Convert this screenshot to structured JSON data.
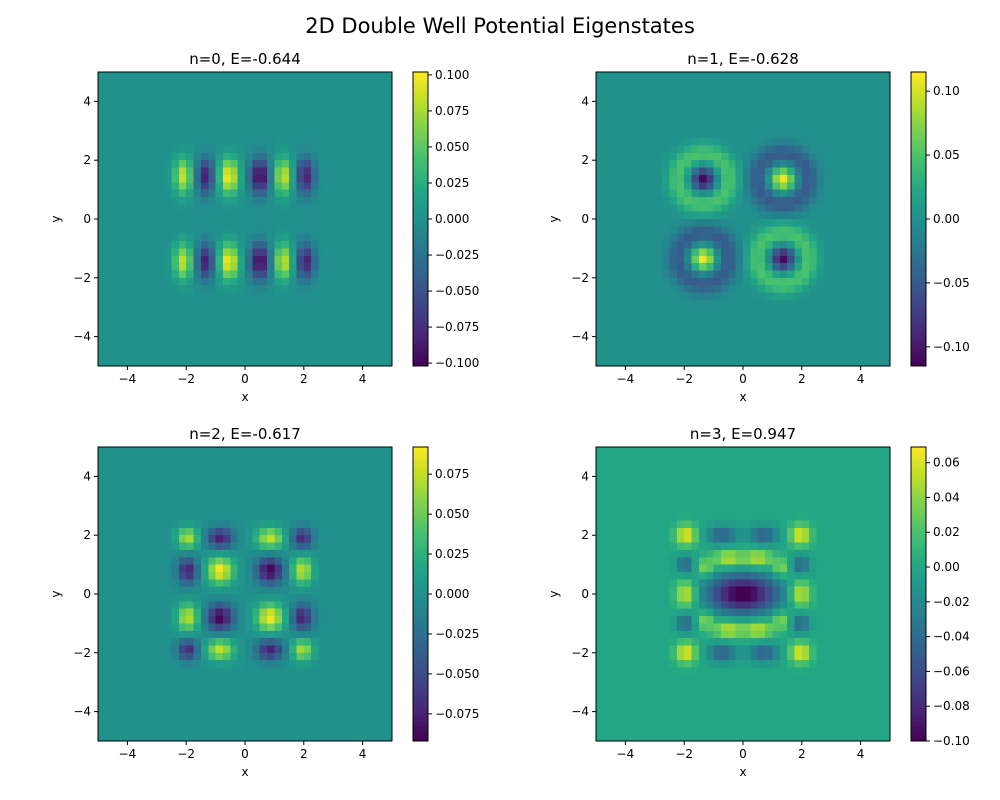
{
  "figure": {
    "title": "2D Double Well Potential Eigenstates"
  },
  "chart_data": [
    {
      "type": "heatmap",
      "title": "n=0, E=-0.644",
      "xlabel": "x",
      "ylabel": "y",
      "xlim": [
        -5,
        5
      ],
      "ylim": [
        -5,
        5
      ],
      "xticks": [
        "−4",
        "−2",
        "0",
        "2",
        "4"
      ],
      "yticks": [
        "−4",
        "−2",
        "0",
        "2",
        "4"
      ],
      "colormap": "viridis",
      "color_range": [
        -0.102,
        0.102
      ],
      "colorbar_ticks": [
        "−0.100",
        "−0.075",
        "−0.050",
        "−0.025",
        "0.000",
        "0.025",
        "0.050",
        "0.075",
        "0.100"
      ],
      "colorbar_tick_values": [
        -0.1,
        -0.075,
        -0.05,
        -0.025,
        0,
        0.025,
        0.05,
        0.075,
        0.1
      ],
      "blobs": [
        {
          "x": -2.1,
          "y": 1.45,
          "amp": 0.085,
          "sx": 0.22,
          "sy": 0.42
        },
        {
          "x": -1.35,
          "y": 1.45,
          "amp": -0.085,
          "sx": 0.22,
          "sy": 0.42
        },
        {
          "x": -0.55,
          "y": 1.45,
          "amp": 0.1,
          "sx": 0.24,
          "sy": 0.42
        },
        {
          "x": 0.5,
          "y": 1.45,
          "amp": -0.1,
          "sx": 0.24,
          "sy": 0.42
        },
        {
          "x": 1.3,
          "y": 1.45,
          "amp": 0.085,
          "sx": 0.22,
          "sy": 0.42
        },
        {
          "x": 2.05,
          "y": 1.45,
          "amp": -0.085,
          "sx": 0.22,
          "sy": 0.42
        },
        {
          "x": -2.1,
          "y": -1.45,
          "amp": 0.085,
          "sx": 0.22,
          "sy": 0.42
        },
        {
          "x": -1.35,
          "y": -1.45,
          "amp": -0.085,
          "sx": 0.22,
          "sy": 0.42
        },
        {
          "x": -0.55,
          "y": -1.45,
          "amp": 0.1,
          "sx": 0.24,
          "sy": 0.42
        },
        {
          "x": 0.5,
          "y": -1.45,
          "amp": -0.1,
          "sx": 0.24,
          "sy": 0.42
        },
        {
          "x": 1.3,
          "y": -1.45,
          "amp": 0.085,
          "sx": 0.22,
          "sy": 0.42
        },
        {
          "x": 2.05,
          "y": -1.45,
          "amp": -0.085,
          "sx": 0.22,
          "sy": 0.42
        }
      ]
    },
    {
      "type": "heatmap",
      "title": "n=1, E=-0.628",
      "xlabel": "x",
      "ylabel": "y",
      "xlim": [
        -5,
        5
      ],
      "ylim": [
        -5,
        5
      ],
      "xticks": [
        "−4",
        "−2",
        "0",
        "2",
        "4"
      ],
      "yticks": [
        "−4",
        "−2",
        "0",
        "2",
        "4"
      ],
      "colormap": "viridis",
      "color_range": [
        -0.115,
        0.115
      ],
      "colorbar_ticks": [
        "−0.10",
        "−0.05",
        "0.00",
        "0.05",
        "0.10"
      ],
      "colorbar_tick_values": [
        -0.1,
        -0.05,
        0,
        0.05,
        0.1
      ],
      "blobs": [
        {
          "x": -1.35,
          "y": 1.35,
          "amp": -0.11,
          "sx": 0.28,
          "sy": 0.28
        },
        {
          "x": -1.35,
          "y": 1.35,
          "ring": 0.05,
          "r": 0.85,
          "w": 0.28
        },
        {
          "x": 1.35,
          "y": 1.35,
          "amp": 0.11,
          "sx": 0.28,
          "sy": 0.28
        },
        {
          "x": 1.35,
          "y": 1.35,
          "ring": -0.05,
          "r": 0.85,
          "w": 0.28
        },
        {
          "x": -1.35,
          "y": -1.35,
          "amp": 0.11,
          "sx": 0.28,
          "sy": 0.28
        },
        {
          "x": -1.35,
          "y": -1.35,
          "ring": -0.05,
          "r": 0.85,
          "w": 0.28
        },
        {
          "x": 1.35,
          "y": -1.35,
          "amp": -0.11,
          "sx": 0.28,
          "sy": 0.28
        },
        {
          "x": 1.35,
          "y": -1.35,
          "ring": 0.05,
          "r": 0.85,
          "w": 0.28
        }
      ]
    },
    {
      "type": "heatmap",
      "title": "n=2, E=-0.617",
      "xlabel": "x",
      "ylabel": "y",
      "xlim": [
        -5,
        5
      ],
      "ylim": [
        -5,
        5
      ],
      "xticks": [
        "−4",
        "−2",
        "0",
        "2",
        "4"
      ],
      "yticks": [
        "−4",
        "−2",
        "0",
        "2",
        "4"
      ],
      "colormap": "viridis",
      "color_range": [
        -0.092,
        0.092
      ],
      "colorbar_ticks": [
        "−0.075",
        "−0.050",
        "−0.025",
        "0.000",
        "0.025",
        "0.050",
        "0.075"
      ],
      "colorbar_tick_values": [
        -0.075,
        -0.05,
        -0.025,
        0,
        0.025,
        0.05,
        0.075
      ],
      "blobs": [
        {
          "x": -1.95,
          "y": 1.9,
          "amp": 0.07,
          "sx": 0.25,
          "sy": 0.25
        },
        {
          "x": -0.85,
          "y": 1.9,
          "amp": -0.075,
          "sx": 0.32,
          "sy": 0.25
        },
        {
          "x": 0.85,
          "y": 1.9,
          "amp": 0.075,
          "sx": 0.32,
          "sy": 0.25
        },
        {
          "x": 1.95,
          "y": 1.9,
          "amp": -0.07,
          "sx": 0.25,
          "sy": 0.25
        },
        {
          "x": -1.95,
          "y": 0.8,
          "amp": -0.075,
          "sx": 0.25,
          "sy": 0.32
        },
        {
          "x": -0.85,
          "y": 0.8,
          "amp": 0.09,
          "sx": 0.32,
          "sy": 0.32
        },
        {
          "x": 0.85,
          "y": 0.8,
          "amp": -0.09,
          "sx": 0.32,
          "sy": 0.32
        },
        {
          "x": 1.95,
          "y": 0.8,
          "amp": 0.075,
          "sx": 0.25,
          "sy": 0.32
        },
        {
          "x": -1.95,
          "y": -0.8,
          "amp": 0.075,
          "sx": 0.25,
          "sy": 0.32
        },
        {
          "x": -0.85,
          "y": -0.8,
          "amp": -0.09,
          "sx": 0.32,
          "sy": 0.32
        },
        {
          "x": 0.85,
          "y": -0.8,
          "amp": 0.09,
          "sx": 0.32,
          "sy": 0.32
        },
        {
          "x": 1.95,
          "y": -0.8,
          "amp": -0.075,
          "sx": 0.25,
          "sy": 0.32
        },
        {
          "x": -1.95,
          "y": -1.9,
          "amp": -0.07,
          "sx": 0.25,
          "sy": 0.25
        },
        {
          "x": -0.85,
          "y": -1.9,
          "amp": 0.075,
          "sx": 0.32,
          "sy": 0.25
        },
        {
          "x": 0.85,
          "y": -1.9,
          "amp": -0.075,
          "sx": 0.32,
          "sy": 0.25
        },
        {
          "x": 1.95,
          "y": -1.9,
          "amp": 0.07,
          "sx": 0.25,
          "sy": 0.25
        }
      ]
    },
    {
      "type": "heatmap",
      "title": "n=3, E=0.947",
      "xlabel": "x",
      "ylabel": "y",
      "xlim": [
        -5,
        5
      ],
      "ylim": [
        -5,
        5
      ],
      "xticks": [
        "−4",
        "−2",
        "0",
        "2",
        "4"
      ],
      "yticks": [
        "−4",
        "−2",
        "0",
        "2",
        "4"
      ],
      "colormap": "viridis",
      "color_range": [
        -0.1,
        0.069
      ],
      "colorbar_ticks": [
        "−0.10",
        "−0.08",
        "−0.06",
        "−0.04",
        "−0.02",
        "0.00",
        "0.02",
        "0.04",
        "0.06"
      ],
      "colorbar_tick_values": [
        -0.1,
        -0.08,
        -0.06,
        -0.04,
        -0.02,
        0,
        0.02,
        0.04,
        0.06
      ],
      "blobs": [
        {
          "x": 0,
          "y": 0,
          "amp": -0.105,
          "sx": 0.85,
          "sy": 0.48
        },
        {
          "x": -0.5,
          "y": 1.2,
          "amp": 0.055,
          "sx": 0.35,
          "sy": 0.22
        },
        {
          "x": 0.5,
          "y": 1.2,
          "amp": 0.055,
          "sx": 0.35,
          "sy": 0.22
        },
        {
          "x": -0.5,
          "y": -1.2,
          "amp": 0.055,
          "sx": 0.35,
          "sy": 0.22
        },
        {
          "x": 0.5,
          "y": -1.2,
          "amp": 0.055,
          "sx": 0.35,
          "sy": 0.22
        },
        {
          "x": -1.3,
          "y": 0.9,
          "amp": 0.04,
          "sx": 0.22,
          "sy": 0.22
        },
        {
          "x": 1.3,
          "y": 0.9,
          "amp": 0.04,
          "sx": 0.22,
          "sy": 0.22
        },
        {
          "x": -1.3,
          "y": -0.9,
          "amp": 0.04,
          "sx": 0.22,
          "sy": 0.22
        },
        {
          "x": 1.3,
          "y": -0.9,
          "amp": 0.04,
          "sx": 0.22,
          "sy": 0.22
        },
        {
          "x": -1.95,
          "y": 0,
          "amp": 0.06,
          "sx": 0.25,
          "sy": 0.32
        },
        {
          "x": 1.95,
          "y": 0,
          "amp": 0.06,
          "sx": 0.25,
          "sy": 0.32
        },
        {
          "x": -1.95,
          "y": 2.0,
          "amp": 0.065,
          "sx": 0.25,
          "sy": 0.25
        },
        {
          "x": 1.95,
          "y": 2.0,
          "amp": 0.065,
          "sx": 0.25,
          "sy": 0.25
        },
        {
          "x": -1.95,
          "y": -2.0,
          "amp": 0.065,
          "sx": 0.25,
          "sy": 0.25
        },
        {
          "x": 1.95,
          "y": -2.0,
          "amp": 0.065,
          "sx": 0.25,
          "sy": 0.25
        },
        {
          "x": -0.7,
          "y": 2.0,
          "amp": -0.05,
          "sx": 0.35,
          "sy": 0.22
        },
        {
          "x": 0.7,
          "y": 2.0,
          "amp": -0.05,
          "sx": 0.35,
          "sy": 0.22
        },
        {
          "x": -0.7,
          "y": -2.0,
          "amp": -0.05,
          "sx": 0.35,
          "sy": 0.22
        },
        {
          "x": 0.7,
          "y": -2.0,
          "amp": -0.05,
          "sx": 0.35,
          "sy": 0.22
        },
        {
          "x": -1.95,
          "y": 1.0,
          "amp": -0.045,
          "sx": 0.22,
          "sy": 0.22
        },
        {
          "x": 1.95,
          "y": 1.0,
          "amp": -0.045,
          "sx": 0.22,
          "sy": 0.22
        },
        {
          "x": -1.95,
          "y": -1.0,
          "amp": -0.045,
          "sx": 0.22,
          "sy": 0.22
        },
        {
          "x": 1.95,
          "y": -1.0,
          "amp": -0.045,
          "sx": 0.22,
          "sy": 0.22
        }
      ]
    }
  ]
}
